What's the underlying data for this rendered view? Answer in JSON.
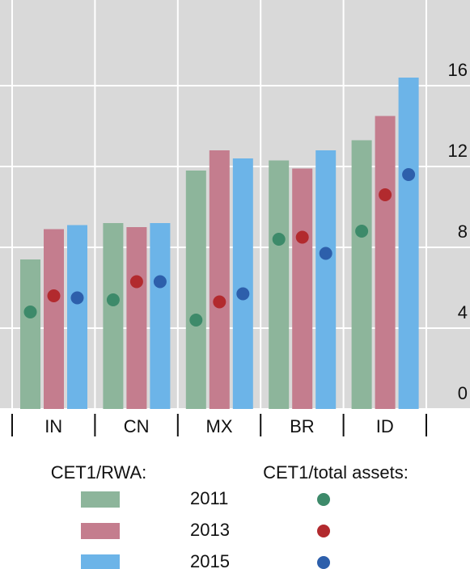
{
  "chart_data": {
    "type": "bar",
    "categories": [
      "IN",
      "CN",
      "MX",
      "BR",
      "ID"
    ],
    "series": [
      {
        "name": "2011",
        "color": "#8db59b",
        "values": [
          7.4,
          9.2,
          11.8,
          12.3,
          13.3
        ]
      },
      {
        "name": "2013",
        "color": "#c47d8e",
        "values": [
          8.9,
          9.0,
          12.8,
          11.9,
          14.5
        ]
      },
      {
        "name": "2015",
        "color": "#6cb4e8",
        "values": [
          9.1,
          9.2,
          12.4,
          12.8,
          16.4
        ]
      }
    ],
    "markers": [
      {
        "color": "#3d8a6a",
        "values": [
          4.8,
          5.4,
          4.4,
          8.4,
          8.8
        ]
      },
      {
        "color": "#b22a2e",
        "values": [
          5.6,
          6.3,
          5.3,
          8.5,
          10.6
        ]
      },
      {
        "color": "#2d5fab",
        "values": [
          5.5,
          6.3,
          5.7,
          7.7,
          11.6
        ]
      }
    ],
    "legend_titles": [
      "CET1/RWA:",
      "CET1/total assets:"
    ],
    "ylim": [
      0,
      20
    ],
    "yticks": [
      0,
      4,
      8,
      12,
      16
    ],
    "grid": true
  }
}
